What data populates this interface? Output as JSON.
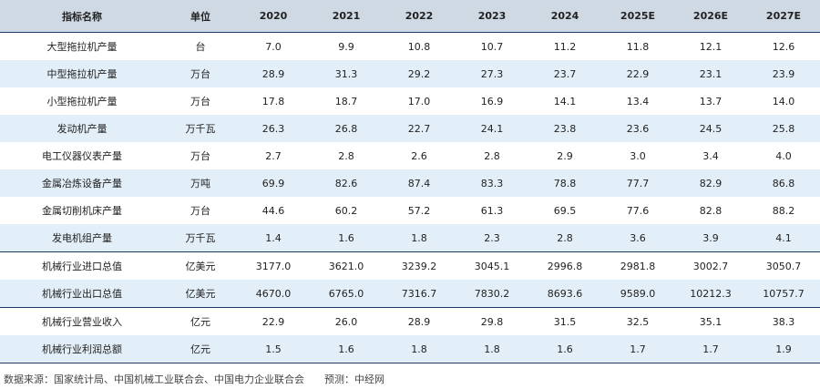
{
  "table": {
    "headers": [
      "指标名称",
      "单位",
      "2020",
      "2021",
      "2022",
      "2023",
      "2024",
      "2025E",
      "2026E",
      "2027E"
    ],
    "rows": [
      {
        "name": "大型拖拉机产量",
        "unit": "台",
        "values": [
          "7.0",
          "9.9",
          "10.8",
          "10.7",
          "11.2",
          "11.8",
          "12.1",
          "12.6"
        ]
      },
      {
        "name": "中型拖拉机产量",
        "unit": "万台",
        "values": [
          "28.9",
          "31.3",
          "29.2",
          "27.3",
          "23.7",
          "22.9",
          "23.1",
          "23.9"
        ]
      },
      {
        "name": "小型拖拉机产量",
        "unit": "万台",
        "values": [
          "17.8",
          "18.7",
          "17.0",
          "16.9",
          "14.1",
          "13.4",
          "13.7",
          "14.0"
        ]
      },
      {
        "name": "发动机产量",
        "unit": "万千瓦",
        "values": [
          "26.3",
          "26.8",
          "22.7",
          "24.1",
          "23.8",
          "23.6",
          "24.5",
          "25.8"
        ]
      },
      {
        "name": "电工仪器仪表产量",
        "unit": "万台",
        "values": [
          "2.7",
          "2.8",
          "2.6",
          "2.8",
          "2.9",
          "3.0",
          "3.4",
          "4.0"
        ]
      },
      {
        "name": "金属冶炼设备产量",
        "unit": "万吨",
        "values": [
          "69.9",
          "82.6",
          "87.4",
          "83.3",
          "78.8",
          "77.7",
          "82.9",
          "86.8"
        ]
      },
      {
        "name": "金属切削机床产量",
        "unit": "万台",
        "values": [
          "44.6",
          "60.2",
          "57.2",
          "61.3",
          "69.5",
          "77.6",
          "82.8",
          "88.2"
        ]
      },
      {
        "name": "发电机组产量",
        "unit": "万千瓦",
        "values": [
          "1.4",
          "1.6",
          "1.8",
          "2.3",
          "2.8",
          "3.6",
          "3.9",
          "4.1"
        ]
      },
      {
        "name": "机械行业进口总值",
        "unit": "亿美元",
        "values": [
          "3177.0",
          "3621.0",
          "3239.2",
          "3045.1",
          "2996.8",
          "2981.8",
          "3002.7",
          "3050.7"
        ]
      },
      {
        "name": "机械行业出口总值",
        "unit": "亿美元",
        "values": [
          "4670.0",
          "6765.0",
          "7316.7",
          "7830.2",
          "8693.6",
          "9589.0",
          "10212.3",
          "10757.7"
        ]
      },
      {
        "name": "机械行业营业收入",
        "unit": "亿元",
        "values": [
          "22.9",
          "26.0",
          "28.9",
          "29.8",
          "31.5",
          "32.5",
          "35.1",
          "38.3"
        ]
      },
      {
        "name": "机械行业利润总额",
        "unit": "亿元",
        "values": [
          "1.5",
          "1.6",
          "1.8",
          "1.8",
          "1.6",
          "1.7",
          "1.7",
          "1.9"
        ]
      }
    ]
  },
  "footer": {
    "source": "数据来源：国家统计局、中国机械工业联合会、中国电力企业联合会",
    "forecast": "预测：中经网"
  },
  "colors": {
    "header_bg": "#cfd9e4",
    "row_shade": "#e2eef8",
    "rule": "#1d3d66"
  }
}
